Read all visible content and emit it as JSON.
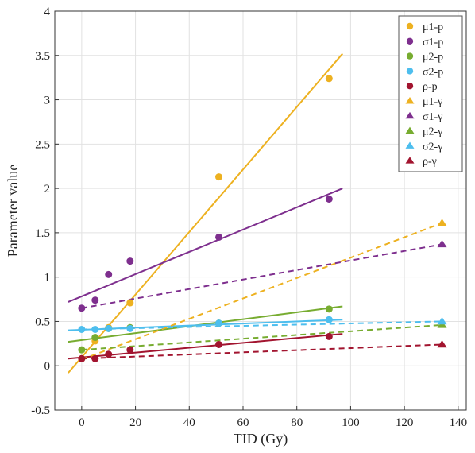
{
  "chart_data": {
    "type": "scatter",
    "xlabel": "TID (Gy)",
    "ylabel": "Parameter value",
    "xlim": [
      -10,
      143
    ],
    "ylim": [
      -0.5,
      4
    ],
    "xticks": [
      0,
      20,
      40,
      60,
      80,
      100,
      120,
      140
    ],
    "yticks": [
      -0.5,
      0,
      0.5,
      1,
      1.5,
      2,
      2.5,
      3,
      3.5,
      4
    ],
    "ytick_labels": [
      "-0.5",
      "0",
      "0.5",
      "1",
      "1.5",
      "2",
      "2.5",
      "3",
      "3.5",
      "4"
    ],
    "grid": true,
    "legend_position": "top-right",
    "series": [
      {
        "name": "μ1-p",
        "marker": "circle",
        "color": "#EDB120",
        "x": [
          0,
          5,
          10,
          18,
          51,
          92
        ],
        "y": [
          0.08,
          0.28,
          0.43,
          0.71,
          2.13,
          3.24
        ],
        "fit": {
          "x": [
            -5,
            97
          ],
          "y": [
            -0.08,
            3.52
          ],
          "dashed": false
        }
      },
      {
        "name": "σ1-p",
        "marker": "circle",
        "color": "#7E2F8E",
        "x": [
          0,
          5,
          10,
          18,
          51,
          92
        ],
        "y": [
          0.65,
          0.74,
          1.03,
          1.18,
          1.45,
          1.88
        ],
        "fit": {
          "x": [
            -5,
            97
          ],
          "y": [
            0.72,
            2.0
          ],
          "dashed": false
        }
      },
      {
        "name": "μ2-p",
        "marker": "circle",
        "color": "#77AC30",
        "x": [
          0,
          5,
          10,
          18,
          51,
          92
        ],
        "y": [
          0.18,
          0.32,
          0.42,
          0.43,
          0.48,
          0.64
        ],
        "fit": {
          "x": [
            -5,
            97
          ],
          "y": [
            0.27,
            0.67
          ],
          "dashed": false
        }
      },
      {
        "name": "σ2-p",
        "marker": "circle",
        "color": "#4DBEEE",
        "x": [
          0,
          5,
          10,
          18,
          51,
          92
        ],
        "y": [
          0.41,
          0.41,
          0.42,
          0.42,
          0.48,
          0.52
        ],
        "fit": {
          "x": [
            -5,
            97
          ],
          "y": [
            0.4,
            0.52
          ],
          "dashed": false
        }
      },
      {
        "name": "ρ-p",
        "marker": "circle",
        "color": "#A2142F",
        "x": [
          0,
          5,
          10,
          18,
          51,
          92
        ],
        "y": [
          0.08,
          0.08,
          0.13,
          0.18,
          0.24,
          0.33
        ],
        "fit": {
          "x": [
            -5,
            97
          ],
          "y": [
            0.08,
            0.36
          ],
          "dashed": false
        }
      },
      {
        "name": "μ1-γ",
        "marker": "triangle",
        "color": "#EDB120",
        "x": [
          134
        ],
        "y": [
          1.61
        ],
        "fit": {
          "x": [
            0,
            134
          ],
          "y": [
            0.07,
            1.61
          ],
          "dashed": true
        }
      },
      {
        "name": "σ1-γ",
        "marker": "triangle",
        "color": "#7E2F8E",
        "x": [
          134
        ],
        "y": [
          1.37
        ],
        "fit": {
          "x": [
            0,
            134
          ],
          "y": [
            0.65,
            1.37
          ],
          "dashed": true
        }
      },
      {
        "name": "μ2-γ",
        "marker": "triangle",
        "color": "#77AC30",
        "x": [
          134
        ],
        "y": [
          0.46
        ],
        "fit": {
          "x": [
            0,
            134
          ],
          "y": [
            0.18,
            0.46
          ],
          "dashed": true
        }
      },
      {
        "name": "σ2-γ",
        "marker": "triangle",
        "color": "#4DBEEE",
        "x": [
          134
        ],
        "y": [
          0.5
        ],
        "fit": {
          "x": [
            0,
            134
          ],
          "y": [
            0.41,
            0.5
          ],
          "dashed": true
        }
      },
      {
        "name": "ρ-γ",
        "marker": "triangle",
        "color": "#A2142F",
        "x": [
          134
        ],
        "y": [
          0.24
        ],
        "fit": {
          "x": [
            0,
            134
          ],
          "y": [
            0.08,
            0.24
          ],
          "dashed": true
        }
      }
    ]
  }
}
